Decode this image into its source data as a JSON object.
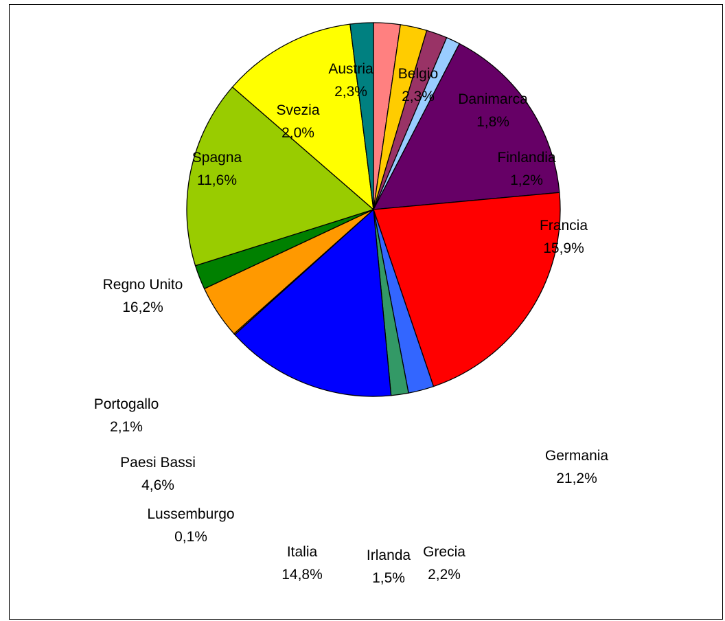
{
  "chart_data": {
    "type": "pie",
    "title": "",
    "slices": [
      {
        "label": "Belgio",
        "pct_label": "2,3%",
        "value": 2.3,
        "color": "#ff8080"
      },
      {
        "label": "Danimarca",
        "pct_label": "1,8%",
        "value": 1.8,
        "color": "#ffcc00"
      },
      {
        "label": "Finlandia",
        "pct_label": "1,2%",
        "value": 1.2,
        "color": "#993366"
      },
      {
        "label": "Francia",
        "pct_label": "15,9%",
        "value": 15.9,
        "color": "#99ccff"
      },
      {
        "label": "Germania",
        "pct_label": "21,2%",
        "value": 21.2,
        "color": "#660066"
      },
      {
        "label": "Grecia",
        "pct_label": "2,2%",
        "value": 2.2,
        "color": "#ff0000"
      },
      {
        "label": "Irlanda",
        "pct_label": "1,5%",
        "value": 1.5,
        "color": "#3366ff"
      },
      {
        "label": "Italia",
        "pct_label": "14,8%",
        "value": 14.8,
        "color": "#339966"
      },
      {
        "label": "Lussemburgo",
        "pct_label": "0,1%",
        "value": 0.1,
        "color": "#0000ff"
      },
      {
        "label": "Paesi Bassi",
        "pct_label": "4,6%",
        "value": 4.6,
        "color": "#ff9900"
      },
      {
        "label": "Portogallo",
        "pct_label": "2,1%",
        "value": 2.1,
        "color": "#008000"
      },
      {
        "label": "Regno Unito",
        "pct_label": "16,2%",
        "value": 16.2,
        "color": "#99cc00"
      },
      {
        "label": "Spagna",
        "pct_label": "11,6%",
        "value": 11.6,
        "color": "#ffff00"
      },
      {
        "label": "Svezia",
        "pct_label": "2,0%",
        "value": 2.0,
        "color": "#008080"
      },
      {
        "label": "Austria",
        "pct_label": "2,3%",
        "value": 2.3,
        "color": "#ff8080"
      }
    ]
  }
}
